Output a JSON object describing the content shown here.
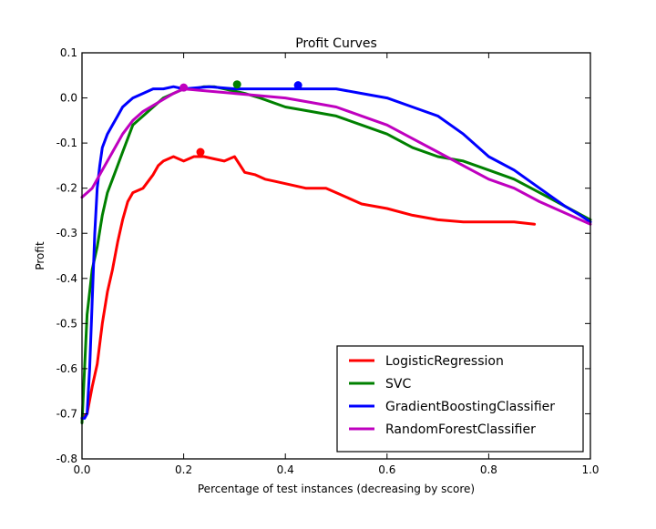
{
  "chart_data": {
    "type": "line",
    "title": "Profit Curves",
    "xlabel": "Percentage of test instances (decreasing by score)",
    "ylabel": "Profit",
    "xlim": [
      0.0,
      1.0
    ],
    "ylim": [
      -0.8,
      0.1
    ],
    "xticks": [
      "0.0",
      "0.2",
      "0.4",
      "0.6",
      "0.8",
      "1.0"
    ],
    "yticks": [
      "0.1",
      "0.0",
      "-0.1",
      "-0.2",
      "-0.3",
      "-0.4",
      "-0.5",
      "-0.6",
      "-0.7",
      "-0.8"
    ],
    "grid": false,
    "legend_position": "lower-right",
    "series": [
      {
        "name": "LogisticRegression",
        "color": "#ff0000",
        "x": [
          0.0,
          0.01,
          0.02,
          0.03,
          0.04,
          0.05,
          0.06,
          0.07,
          0.08,
          0.09,
          0.1,
          0.12,
          0.14,
          0.15,
          0.16,
          0.18,
          0.2,
          0.22,
          0.24,
          0.26,
          0.28,
          0.3,
          0.32,
          0.34,
          0.36,
          0.38,
          0.4,
          0.42,
          0.44,
          0.46,
          0.48,
          0.5,
          0.55,
          0.6,
          0.65,
          0.7,
          0.75,
          0.8,
          0.85,
          0.89
        ],
        "y": [
          -0.71,
          -0.7,
          -0.64,
          -0.59,
          -0.5,
          -0.43,
          -0.38,
          -0.32,
          -0.27,
          -0.23,
          -0.21,
          -0.2,
          -0.17,
          -0.15,
          -0.14,
          -0.13,
          -0.14,
          -0.13,
          -0.13,
          -0.135,
          -0.14,
          -0.13,
          -0.165,
          -0.17,
          -0.18,
          -0.185,
          -0.19,
          -0.195,
          -0.2,
          -0.2,
          -0.2,
          -0.21,
          -0.235,
          -0.245,
          -0.26,
          -0.27,
          -0.275,
          -0.275,
          -0.275,
          -0.28
        ],
        "max_point": {
          "x": 0.233,
          "y": -0.12
        }
      },
      {
        "name": "SVC",
        "color": "#008000",
        "x": [
          0.0,
          0.005,
          0.01,
          0.02,
          0.03,
          0.04,
          0.05,
          0.06,
          0.07,
          0.08,
          0.09,
          0.1,
          0.12,
          0.14,
          0.16,
          0.18,
          0.2,
          0.22,
          0.24,
          0.26,
          0.28,
          0.3,
          0.32,
          0.35,
          0.4,
          0.45,
          0.5,
          0.55,
          0.6,
          0.65,
          0.7,
          0.75,
          0.8,
          0.85,
          0.9,
          0.95,
          1.0
        ],
        "y": [
          -0.72,
          -0.6,
          -0.48,
          -0.38,
          -0.33,
          -0.26,
          -0.21,
          -0.18,
          -0.15,
          -0.12,
          -0.09,
          -0.06,
          -0.04,
          -0.02,
          0.0,
          0.01,
          0.02,
          0.02,
          0.025,
          0.025,
          0.02,
          0.015,
          0.01,
          0.0,
          -0.02,
          -0.03,
          -0.04,
          -0.06,
          -0.08,
          -0.11,
          -0.13,
          -0.14,
          -0.16,
          -0.18,
          -0.21,
          -0.24,
          -0.27
        ],
        "max_point": {
          "x": 0.305,
          "y": 0.03
        }
      },
      {
        "name": "GradientBoostingClassifier",
        "color": "#0000ff",
        "x": [
          0.0,
          0.005,
          0.01,
          0.015,
          0.02,
          0.025,
          0.03,
          0.035,
          0.04,
          0.05,
          0.06,
          0.07,
          0.08,
          0.09,
          0.1,
          0.12,
          0.14,
          0.16,
          0.18,
          0.2,
          0.25,
          0.3,
          0.35,
          0.4,
          0.45,
          0.5,
          0.55,
          0.6,
          0.65,
          0.7,
          0.75,
          0.8,
          0.85,
          0.9,
          0.95,
          0.98,
          1.0
        ],
        "y": [
          -0.71,
          -0.71,
          -0.7,
          -0.6,
          -0.45,
          -0.3,
          -0.2,
          -0.15,
          -0.11,
          -0.08,
          -0.06,
          -0.04,
          -0.02,
          -0.01,
          0.0,
          0.01,
          0.02,
          0.02,
          0.025,
          0.02,
          0.025,
          0.02,
          0.02,
          0.02,
          0.02,
          0.02,
          0.01,
          0.0,
          -0.02,
          -0.04,
          -0.08,
          -0.13,
          -0.16,
          -0.2,
          -0.24,
          -0.26,
          -0.275
        ],
        "max_point": {
          "x": 0.425,
          "y": 0.028
        }
      },
      {
        "name": "RandomForestClassifier",
        "color": "#bf00bf",
        "x": [
          0.0,
          0.02,
          0.04,
          0.06,
          0.08,
          0.1,
          0.12,
          0.15,
          0.18,
          0.2,
          0.25,
          0.3,
          0.35,
          0.4,
          0.45,
          0.5,
          0.55,
          0.6,
          0.65,
          0.7,
          0.75,
          0.8,
          0.85,
          0.9,
          0.95,
          1.0
        ],
        "y": [
          -0.22,
          -0.2,
          -0.16,
          -0.12,
          -0.08,
          -0.05,
          -0.03,
          -0.01,
          0.01,
          0.02,
          0.015,
          0.01,
          0.005,
          0.0,
          -0.01,
          -0.02,
          -0.04,
          -0.06,
          -0.09,
          -0.12,
          -0.15,
          -0.18,
          -0.2,
          -0.23,
          -0.255,
          -0.28
        ],
        "max_point": {
          "x": 0.2,
          "y": 0.023
        }
      }
    ]
  }
}
